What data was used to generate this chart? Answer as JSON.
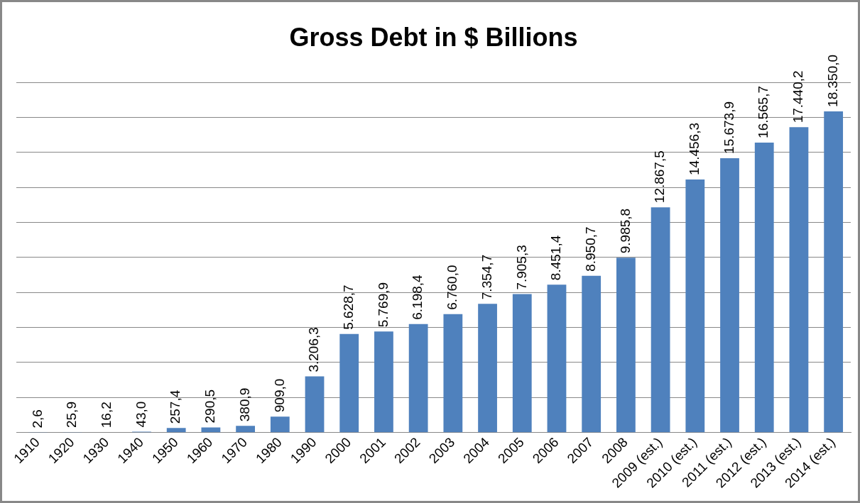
{
  "chart_data": {
    "type": "bar",
    "title": "Gross Debt in $ Billions",
    "categories": [
      "1910",
      "1920",
      "1930",
      "1940",
      "1950",
      "1960",
      "1970",
      "1980",
      "1990",
      "2000",
      "2001",
      "2002",
      "2003",
      "2004",
      "2005",
      "2006",
      "2007",
      "2008",
      "2009 (est.)",
      "2010 (est.)",
      "2011 (est.)",
      "2012 (est.)",
      "2013 (est.)",
      "2014 (est.)"
    ],
    "values": [
      2.6,
      25.9,
      16.2,
      43.0,
      257.4,
      290.5,
      380.9,
      909.0,
      3206.3,
      5628.7,
      5769.9,
      6198.4,
      6760.0,
      7354.7,
      7905.3,
      8451.4,
      8950.7,
      9985.8,
      12867.5,
      14456.3,
      15673.9,
      16565.7,
      17440.2,
      18350.0
    ],
    "value_labels": [
      "2,6",
      "25,9",
      "16,2",
      "43,0",
      "257,4",
      "290,5",
      "380,9",
      "909,0",
      "3.206,3",
      "5.628,7",
      "5.769,9",
      "6.198,4",
      "6.760,0",
      "7.354,7",
      "7.905,3",
      "8.451,4",
      "8.950,7",
      "9.985,8",
      "12.867,5",
      "14.456,3",
      "15.673,9",
      "16.565,7",
      "17.440,2",
      "18.350,0"
    ],
    "color": "#4f81bd",
    "ylim": [
      0,
      20000
    ],
    "yticks": [
      {
        "value": 0,
        "label": null
      },
      {
        "value": 2000,
        "label": null
      },
      {
        "value": 4000,
        "label": null
      },
      {
        "value": 6000,
        "label": null
      },
      {
        "value": 8000,
        "label": null
      },
      {
        "value": 10000,
        "label": null
      },
      {
        "value": 12000,
        "label": null
      },
      {
        "value": 14000,
        "label": null
      },
      {
        "value": 16000,
        "label": null
      },
      {
        "value": 18000,
        "label": null
      },
      {
        "value": 20000,
        "label": null
      }
    ],
    "grid": "y",
    "tick_labels": "x",
    "legend": false
  }
}
